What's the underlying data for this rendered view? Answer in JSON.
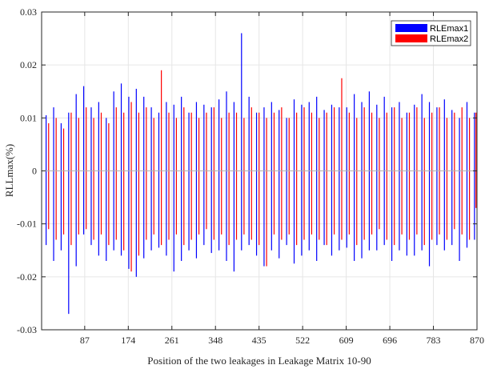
{
  "chart_data": {
    "type": "bar",
    "xlabel": "Position of the two leakages in Leakage Matrix 10-90",
    "ylabel": "RLLmax(%)",
    "xlim": [
      1,
      870
    ],
    "ylim": [
      -0.03,
      0.03
    ],
    "grid": true,
    "legend_position": "top-right",
    "x_ticks": [
      87,
      174,
      261,
      348,
      435,
      522,
      609,
      696,
      783,
      870
    ],
    "x_tick_labels": [
      "87",
      "174",
      "261",
      "348",
      "435",
      "522",
      "609",
      "696",
      "783",
      "870"
    ],
    "y_ticks": [
      -0.03,
      -0.02,
      -0.01,
      0,
      0.01,
      0.02,
      0.03
    ],
    "y_tick_labels": [
      "-0.03",
      "-0.02",
      "-0.01",
      "0",
      "0.01",
      "0.02",
      "0.03"
    ],
    "series": [
      {
        "name": "RLEmax1",
        "color": "#0000ff",
        "x": [
          10,
          25,
          40,
          55,
          70,
          85,
          100,
          115,
          130,
          145,
          160,
          175,
          190,
          205,
          220,
          235,
          250,
          265,
          280,
          295,
          310,
          325,
          340,
          355,
          370,
          385,
          400,
          415,
          430,
          445,
          460,
          475,
          490,
          505,
          520,
          535,
          550,
          565,
          580,
          595,
          610,
          625,
          640,
          655,
          670,
          685,
          700,
          715,
          730,
          745,
          760,
          775,
          790,
          805,
          820,
          835,
          850,
          865
        ],
        "positive": [
          0.0105,
          0.012,
          0.009,
          0.011,
          0.0145,
          0.016,
          0.012,
          0.013,
          0.01,
          0.015,
          0.0165,
          0.014,
          0.0155,
          0.014,
          0.012,
          0.011,
          0.013,
          0.0125,
          0.014,
          0.011,
          0.013,
          0.0125,
          0.012,
          0.0135,
          0.015,
          0.013,
          0.026,
          0.014,
          0.011,
          0.012,
          0.013,
          0.0115,
          0.01,
          0.0135,
          0.0125,
          0.013,
          0.014,
          0.0115,
          0.0125,
          0.012,
          0.012,
          0.0145,
          0.013,
          0.015,
          0.0125,
          0.014,
          0.012,
          0.013,
          0.011,
          0.0125,
          0.0145,
          0.013,
          0.012,
          0.0135,
          0.0115,
          0.01,
          0.013,
          0.011
        ],
        "negative": [
          -0.014,
          -0.017,
          -0.015,
          -0.027,
          -0.018,
          -0.012,
          -0.014,
          -0.016,
          -0.017,
          -0.015,
          -0.016,
          -0.0185,
          -0.02,
          -0.0165,
          -0.015,
          -0.0145,
          -0.016,
          -0.019,
          -0.017,
          -0.015,
          -0.0165,
          -0.014,
          -0.0155,
          -0.015,
          -0.017,
          -0.019,
          -0.015,
          -0.014,
          -0.016,
          -0.018,
          -0.015,
          -0.0165,
          -0.014,
          -0.0175,
          -0.016,
          -0.015,
          -0.017,
          -0.014,
          -0.016,
          -0.015,
          -0.0145,
          -0.017,
          -0.0165,
          -0.015,
          -0.015,
          -0.014,
          -0.017,
          -0.015,
          -0.016,
          -0.016,
          -0.015,
          -0.018,
          -0.014,
          -0.015,
          -0.014,
          -0.017,
          -0.0145,
          -0.013
        ]
      },
      {
        "name": "RLEmax2",
        "color": "#ff0000",
        "x": [
          15,
          30,
          45,
          60,
          75,
          90,
          105,
          120,
          135,
          150,
          165,
          180,
          195,
          210,
          225,
          240,
          255,
          270,
          285,
          300,
          315,
          330,
          345,
          360,
          375,
          390,
          405,
          420,
          435,
          450,
          465,
          480,
          495,
          510,
          525,
          540,
          555,
          570,
          585,
          600,
          615,
          630,
          645,
          660,
          675,
          690,
          705,
          720,
          735,
          750,
          765,
          780,
          795,
          810,
          825,
          840,
          855,
          868
        ],
        "positive": [
          0.009,
          0.01,
          0.008,
          0.011,
          0.01,
          0.012,
          0.01,
          0.011,
          0.009,
          0.012,
          0.011,
          0.013,
          0.011,
          0.012,
          0.01,
          0.019,
          0.011,
          0.01,
          0.012,
          0.011,
          0.01,
          0.011,
          0.012,
          0.01,
          0.011,
          0.011,
          0.01,
          0.012,
          0.011,
          0.01,
          0.011,
          0.012,
          0.01,
          0.011,
          0.012,
          0.011,
          0.01,
          0.011,
          0.012,
          0.0175,
          0.011,
          0.01,
          0.012,
          0.011,
          0.01,
          0.011,
          0.012,
          0.01,
          0.011,
          0.012,
          0.01,
          0.011,
          0.012,
          0.01,
          0.011,
          0.012,
          0.01,
          0.011
        ],
        "negative": [
          -0.011,
          -0.013,
          -0.012,
          -0.014,
          -0.012,
          -0.011,
          -0.013,
          -0.012,
          -0.014,
          -0.013,
          -0.015,
          -0.019,
          -0.016,
          -0.013,
          -0.012,
          -0.014,
          -0.013,
          -0.012,
          -0.014,
          -0.013,
          -0.012,
          -0.011,
          -0.013,
          -0.012,
          -0.014,
          -0.013,
          -0.012,
          -0.013,
          -0.014,
          -0.018,
          -0.012,
          -0.013,
          -0.012,
          -0.014,
          -0.013,
          -0.012,
          -0.013,
          -0.014,
          -0.012,
          -0.013,
          -0.012,
          -0.014,
          -0.013,
          -0.012,
          -0.011,
          -0.013,
          -0.014,
          -0.012,
          -0.013,
          -0.012,
          -0.014,
          -0.013,
          -0.012,
          -0.013,
          -0.011,
          -0.012,
          -0.013,
          -0.007
        ]
      }
    ]
  }
}
